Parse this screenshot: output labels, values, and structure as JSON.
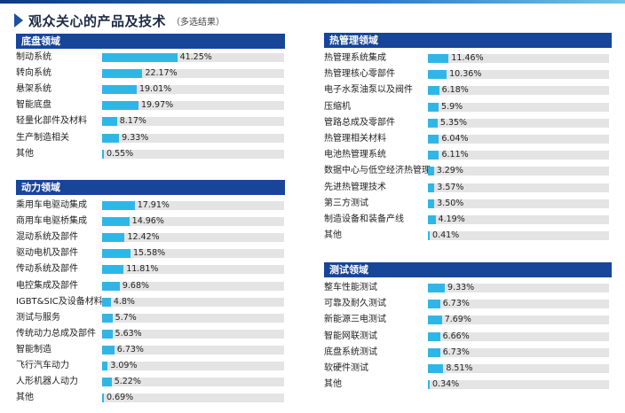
{
  "title": "观众关心的产品及技术",
  "title_note": "（多选结果）",
  "colors": {
    "header": "#17459a",
    "bar": "#2eb7e6",
    "track": "#e4e4e4"
  },
  "chart_data": [
    {
      "type": "bar",
      "title": "底盘领域",
      "categories": [
        "制动系统",
        "转向系统",
        "悬架系统",
        "智能底盘",
        "轻量化部件及材料",
        "生产制造相关",
        "其他"
      ],
      "values": [
        41.25,
        22.17,
        19.01,
        19.97,
        8.17,
        9.33,
        0.55
      ],
      "labels": [
        "41.25%",
        "22.17%",
        "19.01%",
        "19.97%",
        "8.17%",
        "9.33%",
        "0.55%"
      ],
      "xlim": [
        0,
        100
      ]
    },
    {
      "type": "bar",
      "title": "动力领域",
      "categories": [
        "乘用车电驱动集成",
        "商用车电驱桥集成",
        "混动系统及部件",
        "驱动电机及部件",
        "传动系统及部件",
        "电控集成及部件",
        "IGBT&SIC及设备材料",
        "测试与服务",
        "传统动力总成及部件",
        "智能制造",
        "飞行汽车动力",
        "人形机器人动力",
        "其他"
      ],
      "values": [
        17.91,
        14.96,
        12.42,
        15.58,
        11.81,
        9.68,
        4.8,
        5.7,
        5.63,
        6.73,
        3.09,
        5.22,
        0.69
      ],
      "labels": [
        "17.91%",
        "14.96%",
        "12.42%",
        "15.58%",
        "11.81%",
        "9.68%",
        "4.8%",
        "5.7%",
        "5.63%",
        "6.73%",
        "3.09%",
        "5.22%",
        "0.69%"
      ],
      "xlim": [
        0,
        100
      ]
    },
    {
      "type": "bar",
      "title": "热管理领域",
      "categories": [
        "热管理系统集成",
        "热管理核心零部件",
        "电子水泵油泵以及阀件",
        "压缩机",
        "管路总成及零部件",
        "热管理相关材料",
        "电池热管理系统",
        "数据中心与低空经济热管理",
        "先进热管理技术",
        "第三方测试",
        "制造设备和装备产线",
        "其他"
      ],
      "values": [
        11.46,
        10.36,
        6.18,
        5.9,
        5.35,
        6.04,
        6.11,
        3.29,
        3.57,
        3.5,
        4.19,
        0.41
      ],
      "labels": [
        "11.46%",
        "10.36%",
        "6.18%",
        "5.9%",
        "5.35%",
        "6.04%",
        "6.11%",
        "3.29%",
        "3.57%",
        "3.50%",
        "4.19%",
        "0.41%"
      ],
      "xlim": [
        0,
        100
      ]
    },
    {
      "type": "bar",
      "title": "测试领域",
      "categories": [
        "整车性能测试",
        "可靠及耐久测试",
        "新能源三电测试",
        "智能网联测试",
        "底盘系统测试",
        "软硬件测试",
        "其他"
      ],
      "values": [
        9.33,
        6.73,
        7.69,
        6.66,
        6.73,
        8.51,
        0.34
      ],
      "labels": [
        "9.33%",
        "6.73%",
        "7.69%",
        "6.66%",
        "6.73%",
        "8.51%",
        "0.34%"
      ],
      "xlim": [
        0,
        100
      ]
    }
  ]
}
